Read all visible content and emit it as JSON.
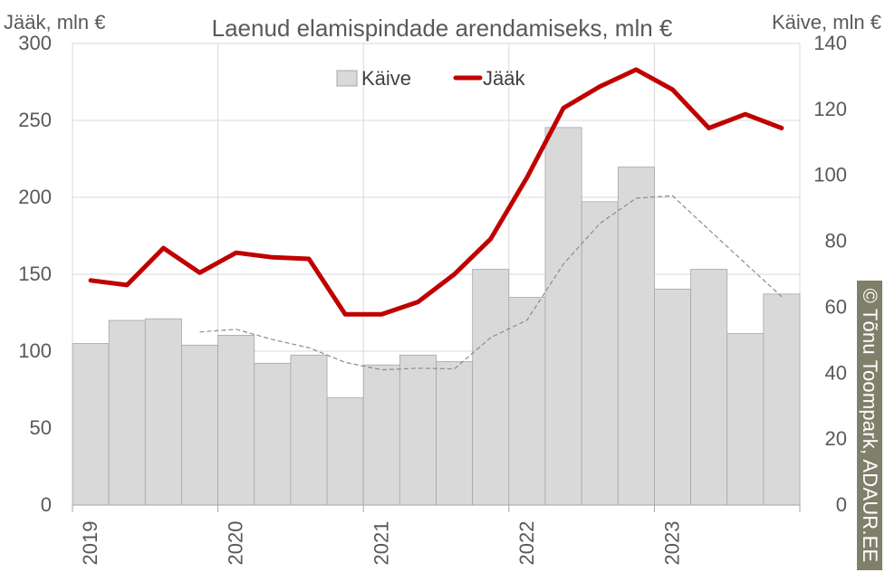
{
  "chart_data": {
    "type": "bar+line",
    "title": "Laenud elamispindade arendamiseks, mln €",
    "y_left_label": "Jääk, mln €",
    "y_right_label": "Käive, mln €",
    "y_left_range": [
      0,
      300
    ],
    "y_right_range": [
      0,
      140
    ],
    "y_left_ticks": [
      "0",
      "50",
      "100",
      "150",
      "200",
      "250",
      "300"
    ],
    "y_right_ticks": [
      "0",
      "20",
      "40",
      "60",
      "80",
      "100",
      "120",
      "140"
    ],
    "x_tick_labels": [
      "2019",
      "2020",
      "2021",
      "2022",
      "2023"
    ],
    "legend": [
      "Käive",
      "Jääk"
    ],
    "legend_position": "top",
    "gridlines": true,
    "colors": {
      "bars": "#d9d9d9",
      "bar_border": "#a6a6a6",
      "line": "#c00000",
      "trend": "#8c8c8c",
      "grid": "#d9d9d9"
    },
    "periods": [
      "2019 Q1",
      "2019 Q2",
      "2019 Q3",
      "2019 Q4",
      "2020 Q1",
      "2020 Q2",
      "2020 Q3",
      "2020 Q4",
      "2021 Q1",
      "2021 Q2",
      "2021 Q3",
      "2021 Q4",
      "2022 Q1",
      "2022 Q2",
      "2022 Q3",
      "2022 Q4",
      "2023 Q1",
      "2023 Q2",
      "2023 Q3",
      "2023 Q4"
    ],
    "series": [
      {
        "name": "Käive",
        "type": "bar",
        "axis": "right",
        "values": [
          49,
          56,
          56.5,
          48.5,
          51.5,
          43,
          45.5,
          32.5,
          42.5,
          45.5,
          43.5,
          71.5,
          63,
          114.5,
          92,
          102.5,
          65.5,
          71.5,
          52,
          64
        ]
      },
      {
        "name": "Jääk",
        "type": "line",
        "axis": "left",
        "values": [
          146,
          143,
          167,
          151,
          164,
          161,
          160,
          124,
          124,
          132,
          150,
          173,
          213,
          258,
          272,
          283,
          270,
          245,
          254,
          245
        ]
      },
      {
        "type": "dashed-trend",
        "axis": "right",
        "start_index": 3,
        "values": [
          52.5,
          53.3,
          50.2,
          47.7,
          43.3,
          41,
          41.5,
          41.3,
          50.8,
          56.1,
          73.1,
          85.4,
          93.1,
          93.8,
          83.5,
          73.3,
          63.2
        ]
      }
    ]
  },
  "watermark": "© Tõnu Toompark, ADAUR.EE"
}
